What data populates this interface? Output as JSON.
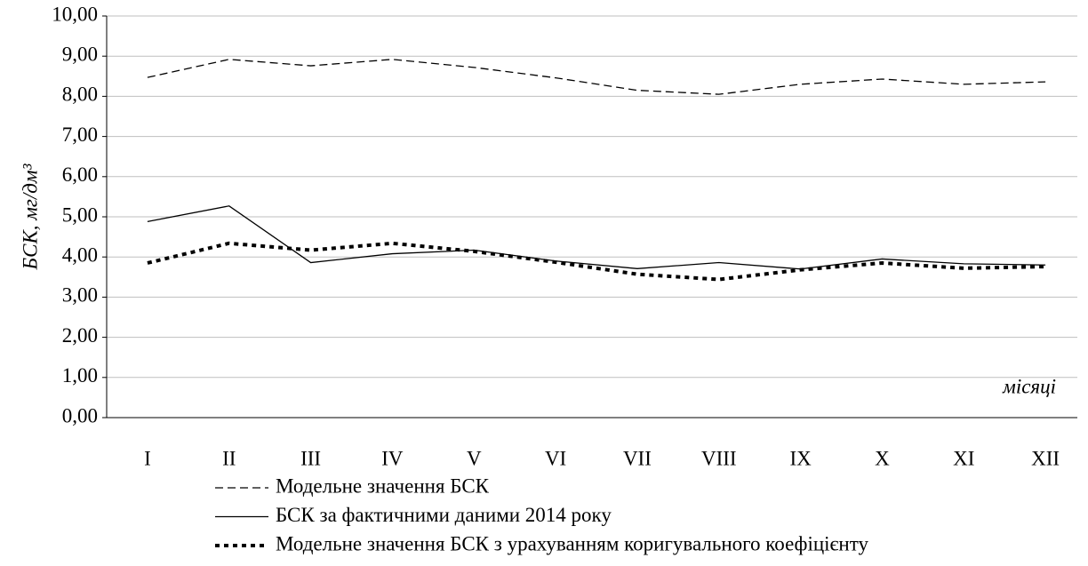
{
  "chart_data": {
    "type": "line",
    "y_label": "БСК, мг/дм³",
    "annotation": "місяці",
    "categories": [
      "I",
      "II",
      "III",
      "IV",
      "V",
      "VI",
      "VII",
      "VIII",
      "IX",
      "X",
      "XI",
      "XII"
    ],
    "series": [
      {
        "name": "Модельне значення БСК",
        "color": "#000000",
        "line_style": "dashed",
        "values": [
          8.47,
          8.92,
          8.76,
          8.92,
          8.72,
          8.46,
          8.15,
          8.05,
          8.3,
          8.43,
          8.3,
          8.36
        ]
      },
      {
        "name": "БСК за фактичними даними 2014 року",
        "color": "#000000",
        "line_style": "solid",
        "values": [
          4.88,
          5.27,
          3.86,
          4.08,
          4.17,
          3.9,
          3.71,
          3.86,
          3.7,
          3.95,
          3.83,
          3.8
        ]
      },
      {
        "name": "Модельне значення БСК з урахуванням коригувального коефіцієнту",
        "color": "#000000",
        "line_style": "dotted",
        "values": [
          3.85,
          4.34,
          4.17,
          4.34,
          4.14,
          3.87,
          3.57,
          3.44,
          3.68,
          3.85,
          3.72,
          3.76
        ]
      }
    ],
    "ylim": [
      0,
      10
    ],
    "yticks": [
      {
        "value": 0,
        "label": "0,00"
      },
      {
        "value": 1,
        "label": "1,00"
      },
      {
        "value": 2,
        "label": "2,00"
      },
      {
        "value": 3,
        "label": "3,00"
      },
      {
        "value": 4,
        "label": "4,00"
      },
      {
        "value": 5,
        "label": "5,00"
      },
      {
        "value": 6,
        "label": "6,00"
      },
      {
        "value": 7,
        "label": "7,00"
      },
      {
        "value": 8,
        "label": "8,00"
      },
      {
        "value": 9,
        "label": "9,00"
      },
      {
        "value": 10,
        "label": "10,00"
      }
    ],
    "grid": true,
    "legend": "bottom"
  }
}
